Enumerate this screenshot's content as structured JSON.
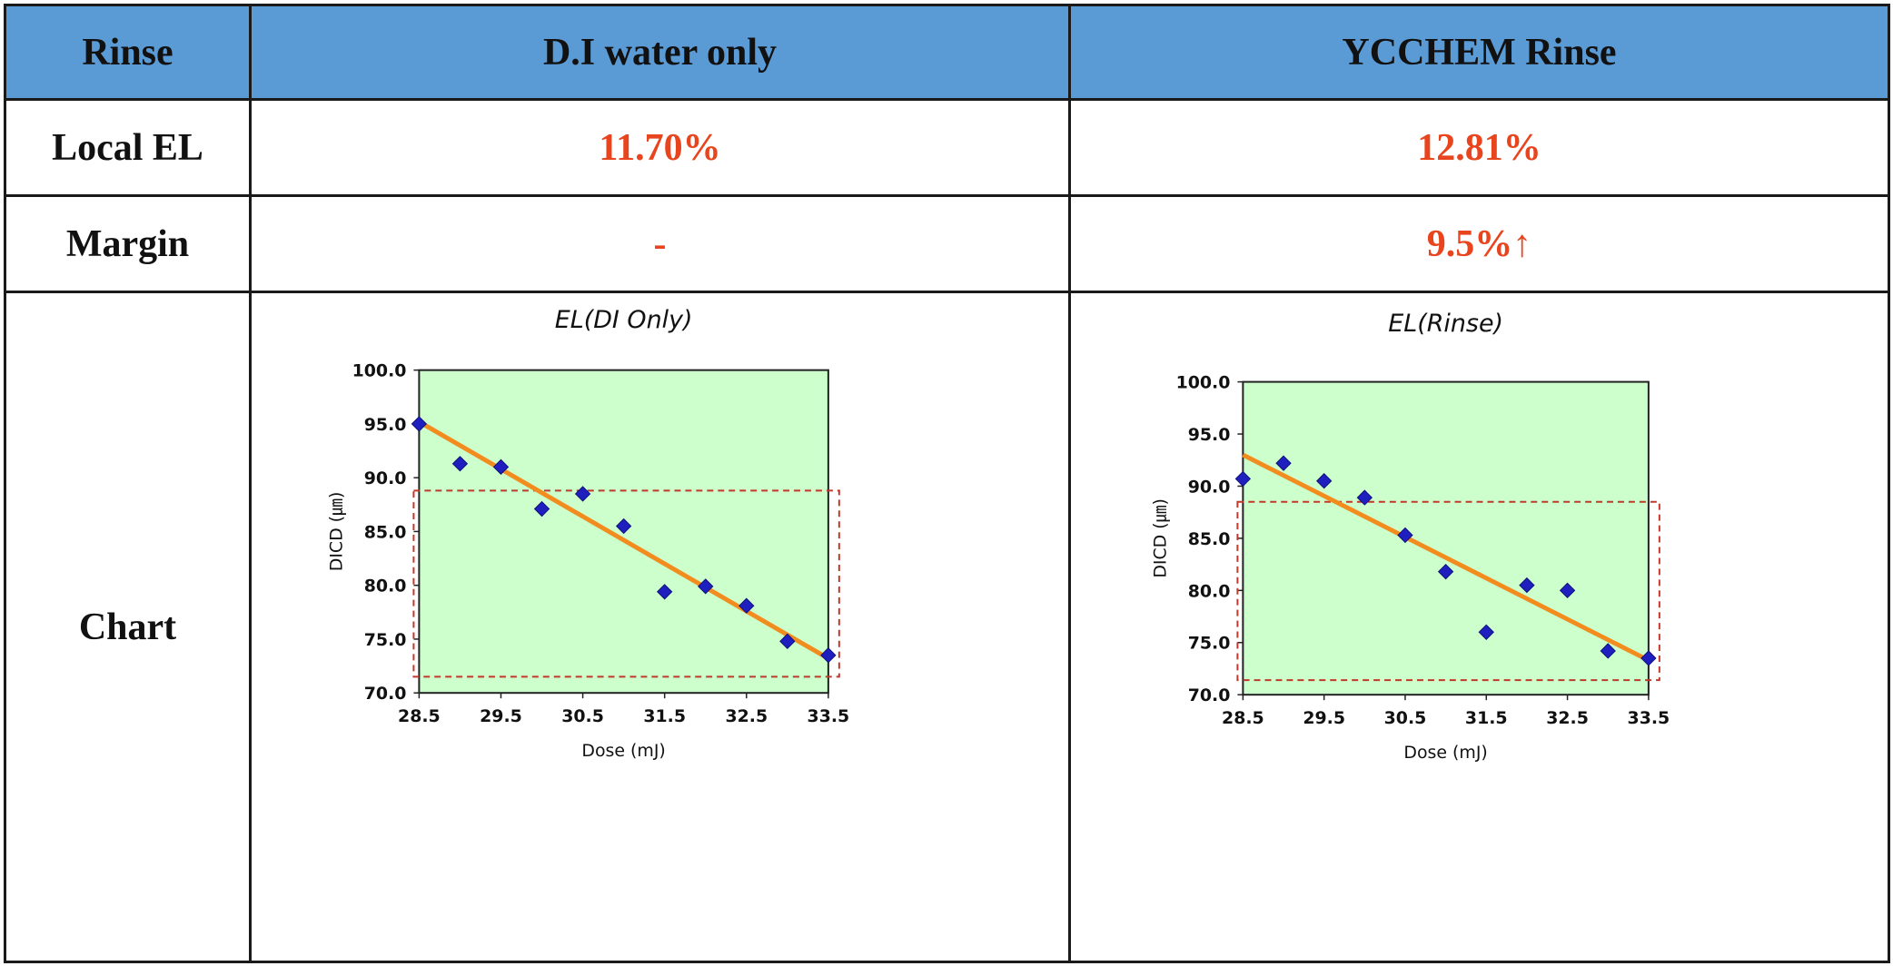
{
  "table": {
    "headers": [
      "Rinse",
      "D.I  water only",
      "YCCHEM Rinse"
    ],
    "rows": [
      {
        "label": "Local EL",
        "values": [
          "11.70%",
          "12.81%"
        ]
      },
      {
        "label": "Margin",
        "values": [
          "-",
          "9.5%↑"
        ]
      },
      {
        "label": "Chart"
      }
    ]
  },
  "colors": {
    "header_bg": "#5b9bd5",
    "value_text": "#e8451e",
    "plot_bg": "#ccffcc",
    "marker": "#1f1fbf",
    "trendline": "#f28c1e",
    "window": "#c0392b"
  },
  "chart_data": [
    {
      "type": "scatter",
      "title": "EL(DI Only)",
      "xlabel": "Dose (mJ)",
      "ylabel": "DICD (㎛)",
      "x_ticks": [
        "28.5",
        "29.5",
        "30.5",
        "31.5",
        "32.5",
        "33.5"
      ],
      "y_ticks": [
        "70.0",
        "75.0",
        "80.0",
        "85.0",
        "90.0",
        "95.0",
        "100.0"
      ],
      "xlim": [
        28.5,
        33.5
      ],
      "ylim": [
        70,
        100
      ],
      "series": [
        {
          "x": [
            28.5,
            29.0,
            29.5,
            30.0,
            30.5,
            31.0,
            31.5,
            32.0,
            32.5,
            33.0,
            33.5
          ],
          "y": [
            95.0,
            91.3,
            91.0,
            87.1,
            88.5,
            85.5,
            79.4,
            79.9,
            78.1,
            74.8,
            73.5
          ]
        }
      ],
      "trendline": {
        "x": [
          28.5,
          33.5
        ],
        "y": [
          95.2,
          73.2
        ]
      },
      "window": {
        "x": [
          28.5,
          33.5
        ],
        "y": [
          71.5,
          88.8
        ]
      },
      "grid": false
    },
    {
      "type": "scatter",
      "title": "EL(Rinse)",
      "xlabel": "Dose (mJ)",
      "ylabel": "DICD (㎛)",
      "x_ticks": [
        "28.5",
        "29.5",
        "30.5",
        "31.5",
        "32.5",
        "33.5"
      ],
      "y_ticks": [
        "70.0",
        "75.0",
        "80.0",
        "85.0",
        "90.0",
        "95.0",
        "100.0"
      ],
      "xlim": [
        28.5,
        33.5
      ],
      "ylim": [
        70,
        100
      ],
      "series": [
        {
          "x": [
            28.5,
            29.0,
            29.5,
            30.0,
            30.5,
            31.0,
            31.5,
            32.0,
            32.5,
            33.0,
            33.5
          ],
          "y": [
            90.7,
            92.2,
            90.5,
            88.9,
            85.3,
            81.8,
            76.0,
            80.5,
            80.0,
            74.2,
            73.5
          ]
        }
      ],
      "trendline": {
        "x": [
          28.5,
          33.5
        ],
        "y": [
          93.0,
          73.3
        ]
      },
      "window": {
        "x": [
          28.5,
          33.5
        ],
        "y": [
          71.4,
          88.5
        ]
      },
      "grid": false
    }
  ]
}
